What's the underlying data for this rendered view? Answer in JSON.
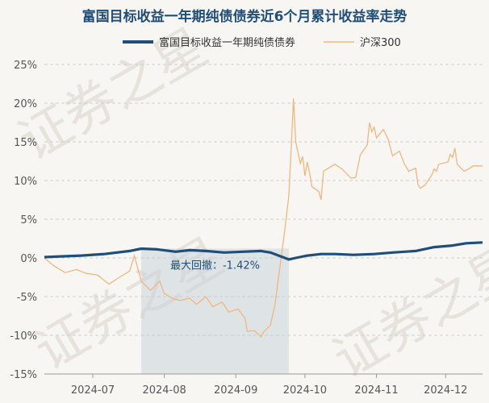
{
  "chart_data": {
    "type": "line",
    "title": "富国目标收益一年期纯债债券近6个月累计收益率走势",
    "y_unit": "%",
    "ylim": [
      -15,
      25
    ],
    "y_ticks": [
      "25%",
      "20%",
      "15%",
      "10%",
      "5%",
      "0%",
      "-5%",
      "-10%",
      "-15%"
    ],
    "x_ticks": [
      "2024-07",
      "2024-08",
      "2024-09",
      "2024-10",
      "2024-11",
      "2024-12"
    ],
    "x_range": [
      "2024-06-24",
      "2024-12-31"
    ],
    "grid": "horizontal dashed",
    "legend_position": "top",
    "watermark": "证券之星",
    "drawdown": {
      "label": "最大回撤：-1.42%",
      "start": "2024-08-05",
      "end": "2024-10-08"
    },
    "series": [
      {
        "name": "富国目标收益一年期纯债债券",
        "color": "#1f4e79",
        "points": [
          [
            "2024-06-24",
            0.1
          ],
          [
            "2024-07-01",
            0.2
          ],
          [
            "2024-07-10",
            0.3
          ],
          [
            "2024-07-20",
            0.5
          ],
          [
            "2024-07-31",
            0.9
          ],
          [
            "2024-08-05",
            1.2
          ],
          [
            "2024-08-12",
            1.1
          ],
          [
            "2024-08-20",
            0.8
          ],
          [
            "2024-08-26",
            1.0
          ],
          [
            "2024-09-02",
            0.9
          ],
          [
            "2024-09-10",
            0.7
          ],
          [
            "2024-09-18",
            0.8
          ],
          [
            "2024-09-26",
            0.9
          ],
          [
            "2024-09-30",
            0.7
          ],
          [
            "2024-10-08",
            -0.2
          ],
          [
            "2024-10-11",
            0.0
          ],
          [
            "2024-10-16",
            0.3
          ],
          [
            "2024-10-22",
            0.5
          ],
          [
            "2024-10-28",
            0.5
          ],
          [
            "2024-11-05",
            0.4
          ],
          [
            "2024-11-14",
            0.5
          ],
          [
            "2024-11-22",
            0.7
          ],
          [
            "2024-12-02",
            0.9
          ],
          [
            "2024-12-10",
            1.4
          ],
          [
            "2024-12-18",
            1.6
          ],
          [
            "2024-12-24",
            1.9
          ],
          [
            "2024-12-31",
            2.0
          ]
        ]
      },
      {
        "name": "沪深300",
        "color": "#f0b77e",
        "points": [
          [
            "2024-06-24",
            0.0
          ],
          [
            "2024-06-28",
            -1.0
          ],
          [
            "2024-07-03",
            -1.9
          ],
          [
            "2024-07-08",
            -1.5
          ],
          [
            "2024-07-12",
            -2.0
          ],
          [
            "2024-07-17",
            -2.2
          ],
          [
            "2024-07-22",
            -3.4
          ],
          [
            "2024-07-26",
            -2.6
          ],
          [
            "2024-07-31",
            -1.7
          ],
          [
            "2024-08-02",
            0.3
          ],
          [
            "2024-08-05",
            -3.0
          ],
          [
            "2024-08-09",
            -4.2
          ],
          [
            "2024-08-13",
            -3.0
          ],
          [
            "2024-08-15",
            -4.6
          ],
          [
            "2024-08-19",
            -5.3
          ],
          [
            "2024-08-22",
            -5.5
          ],
          [
            "2024-08-26",
            -5.2
          ],
          [
            "2024-08-29",
            -6.0
          ],
          [
            "2024-09-02",
            -5.0
          ],
          [
            "2024-09-05",
            -6.3
          ],
          [
            "2024-09-09",
            -5.7
          ],
          [
            "2024-09-12",
            -7.0
          ],
          [
            "2024-09-16",
            -6.6
          ],
          [
            "2024-09-19",
            -7.8
          ],
          [
            "2024-09-20",
            -9.5
          ],
          [
            "2024-09-23",
            -9.4
          ],
          [
            "2024-09-26",
            -10.2
          ],
          [
            "2024-09-27",
            -9.6
          ],
          [
            "2024-09-30",
            -8.7
          ],
          [
            "2024-10-02",
            -6.0
          ],
          [
            "2024-10-04",
            -1.5
          ],
          [
            "2024-10-06",
            3.0
          ],
          [
            "2024-10-08",
            8.0
          ],
          [
            "2024-10-09",
            14.0
          ],
          [
            "2024-10-10",
            20.6
          ],
          [
            "2024-10-11",
            15.0
          ],
          [
            "2024-10-13",
            12.2
          ],
          [
            "2024-10-14",
            13.1
          ],
          [
            "2024-10-15",
            10.6
          ],
          [
            "2024-10-16",
            12.4
          ],
          [
            "2024-10-17",
            11.0
          ],
          [
            "2024-10-18",
            9.2
          ],
          [
            "2024-10-21",
            8.6
          ],
          [
            "2024-10-22",
            7.5
          ],
          [
            "2024-10-23",
            11.2
          ],
          [
            "2024-10-24",
            11.4
          ],
          [
            "2024-10-28",
            12.1
          ],
          [
            "2024-10-31",
            11.5
          ],
          [
            "2024-11-04",
            10.3
          ],
          [
            "2024-11-06",
            10.4
          ],
          [
            "2024-11-08",
            13.3
          ],
          [
            "2024-11-11",
            14.6
          ],
          [
            "2024-11-12",
            17.5
          ],
          [
            "2024-11-13",
            16.3
          ],
          [
            "2024-11-14",
            16.9
          ],
          [
            "2024-11-15",
            15.5
          ],
          [
            "2024-11-18",
            16.6
          ],
          [
            "2024-11-20",
            15.4
          ],
          [
            "2024-11-22",
            13.2
          ],
          [
            "2024-11-25",
            13.8
          ],
          [
            "2024-11-27",
            12.2
          ],
          [
            "2024-11-29",
            11.2
          ],
          [
            "2024-12-02",
            11.6
          ],
          [
            "2024-12-03",
            9.5
          ],
          [
            "2024-12-04",
            9.0
          ],
          [
            "2024-12-06",
            9.4
          ],
          [
            "2024-12-09",
            10.7
          ],
          [
            "2024-12-10",
            11.5
          ],
          [
            "2024-12-11",
            11.2
          ],
          [
            "2024-12-12",
            12.1
          ],
          [
            "2024-12-16",
            12.4
          ],
          [
            "2024-12-17",
            13.4
          ],
          [
            "2024-12-18",
            13.0
          ],
          [
            "2024-12-19",
            14.2
          ],
          [
            "2024-12-20",
            12.1
          ],
          [
            "2024-12-23",
            11.2
          ],
          [
            "2024-12-25",
            11.5
          ],
          [
            "2024-12-27",
            11.9
          ],
          [
            "2024-12-31",
            11.9
          ]
        ]
      }
    ]
  }
}
